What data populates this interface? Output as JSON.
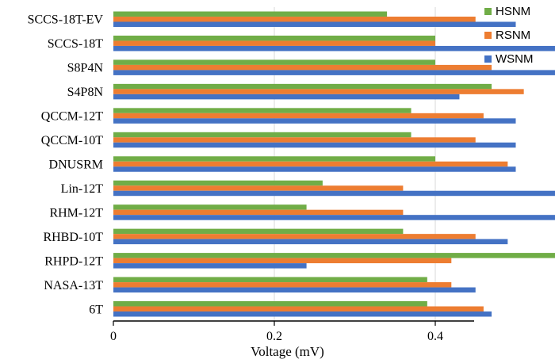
{
  "chart_data": {
    "type": "bar",
    "orientation": "horizontal",
    "categories": [
      "6T",
      "NASA-13T",
      "RHPD-12T",
      "RHBD-10T",
      "RHM-12T",
      "Lin-12T",
      "DNUSRM",
      "QCCM-10T",
      "QCCM-12T",
      "S4P8N",
      "S8P4N",
      "SCCS-18T",
      "SCCS-18T-EV"
    ],
    "series": [
      {
        "name": "HSNM",
        "color": "#70AD47",
        "values": [
          0.39,
          0.39,
          0.57,
          0.36,
          0.24,
          0.26,
          0.4,
          0.37,
          0.37,
          0.47,
          0.4,
          0.4,
          0.34
        ]
      },
      {
        "name": "RSNM",
        "color": "#ED7D31",
        "values": [
          0.46,
          0.42,
          0.42,
          0.45,
          0.36,
          0.36,
          0.49,
          0.45,
          0.46,
          0.51,
          0.47,
          0.4,
          0.45
        ]
      },
      {
        "name": "WSNM",
        "color": "#4472C4",
        "values": [
          0.47,
          0.45,
          0.24,
          0.49,
          0.57,
          0.55,
          0.5,
          0.5,
          0.5,
          0.43,
          0.55,
          0.66,
          0.5
        ]
      }
    ],
    "xlabel": "Voltage (mV)",
    "ylabel": "",
    "title": "",
    "xlim": [
      0,
      0.9
    ],
    "xticks": [
      "0",
      "0.2",
      "0.4",
      "0.6",
      "0.8"
    ],
    "grid": true,
    "legend_position": "top-right"
  }
}
